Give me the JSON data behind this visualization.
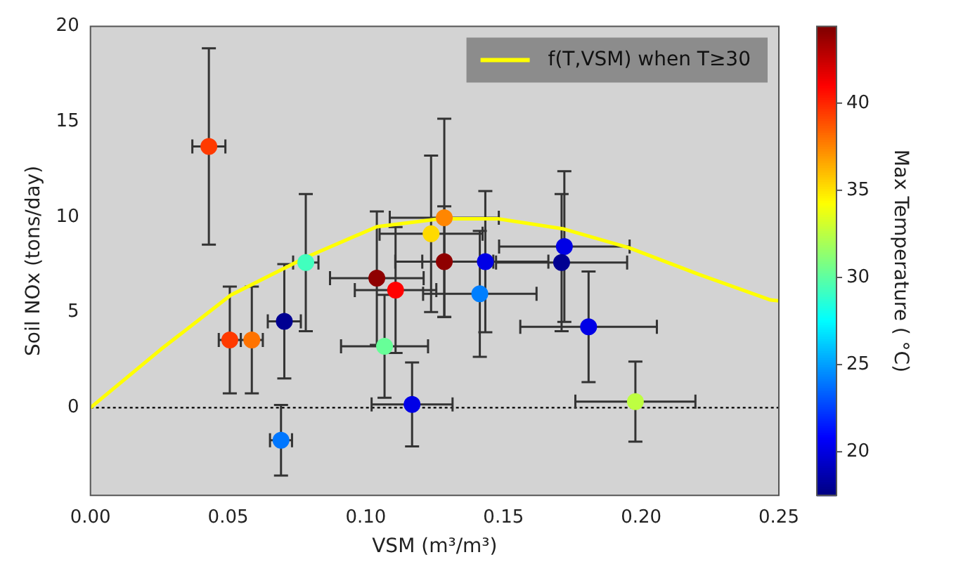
{
  "chart_data": {
    "type": "scatter",
    "xlabel": "VSM (m³/m³)",
    "ylabel": "Soil NOx (tons/day)",
    "clabel": "Max Temperature ( °C)",
    "xlim": [
      0,
      0.25
    ],
    "xticks": [
      {
        "value": 0,
        "label": "0.00"
      },
      {
        "value": 0.05,
        "label": "0.05"
      },
      {
        "value": 0.1,
        "label": "0.10"
      },
      {
        "value": 0.15,
        "label": "0.15"
      },
      {
        "value": 0.2,
        "label": "0.20"
      },
      {
        "value": 0.25,
        "label": "0.25"
      }
    ],
    "ylim": [
      -4.6,
      20
    ],
    "yticks": [
      0,
      5,
      10,
      15,
      20
    ],
    "clim": [
      17.5,
      44.4
    ],
    "cticks": [
      20,
      25,
      30,
      35,
      40
    ],
    "marker": "circle",
    "grid": false,
    "legend": "top right",
    "ref_lines": [
      {
        "axis": "y",
        "value": 0,
        "color": "#000000",
        "line_style": "dotted"
      }
    ],
    "series": [
      {
        "x": [
          0.043,
          0.0506,
          0.0586,
          0.0704,
          0.0692,
          0.0782,
          0.104,
          0.1108,
          0.1068,
          0.1168,
          0.1237,
          0.1285,
          0.1285,
          0.1434,
          0.1414,
          0.1721,
          0.1711,
          0.1809,
          0.1979
        ],
        "values": [
          13.7,
          3.55,
          3.55,
          4.53,
          -1.71,
          7.61,
          6.79,
          6.17,
          3.22,
          0.17,
          9.12,
          9.96,
          7.66,
          7.66,
          5.97,
          8.45,
          7.61,
          4.24,
          0.32
        ],
        "errors": [
          5.15,
          2.8,
          2.8,
          3.0,
          1.85,
          3.6,
          3.5,
          3.3,
          2.7,
          2.2,
          4.1,
          5.2,
          2.9,
          3.7,
          3.3,
          3.95,
          3.6,
          2.9,
          2.1
        ],
        "xerrors": [
          0.006,
          0.004,
          0.004,
          0.006,
          0.004,
          0.0046,
          0.017,
          0.0148,
          0.0158,
          0.0147,
          0.0187,
          0.0198,
          0.0178,
          0.0229,
          0.0206,
          0.0237,
          0.0238,
          0.0248,
          0.0218
        ],
        "cvalues": [
          39.5,
          39.5,
          38,
          18,
          24,
          29.3,
          44,
          41,
          30.3,
          20.2,
          35.3,
          37.5,
          44,
          20.2,
          24.2,
          20.2,
          18,
          20.2,
          32.6
        ],
        "colors": [
          "#ff3a00",
          "#ff3a00",
          "#ff7300",
          "#000092",
          "#0077ff",
          "#41ffbe",
          "#8f0000",
          "#ff0100",
          "#67ff98",
          "#0000e6",
          "#ffda00",
          "#ff8600",
          "#8f0000",
          "#0000e6",
          "#007fff",
          "#0000e6",
          "#000092",
          "#0000e6",
          "#beff41"
        ]
      },
      {
        "type": "line",
        "name": "f(T,VSM) when T≥30",
        "color": "#ffff00",
        "marker": "none",
        "x": [
          0,
          0.0255,
          0.0509,
          0.0782,
          0.104,
          0.127,
          0.148,
          0.172,
          0.1957,
          0.2206,
          0.247,
          0.25
        ],
        "values": [
          0,
          3.05,
          5.9,
          7.88,
          9.49,
          9.91,
          9.91,
          9.37,
          8.38,
          7.01,
          5.65,
          5.6
        ]
      }
    ]
  }
}
